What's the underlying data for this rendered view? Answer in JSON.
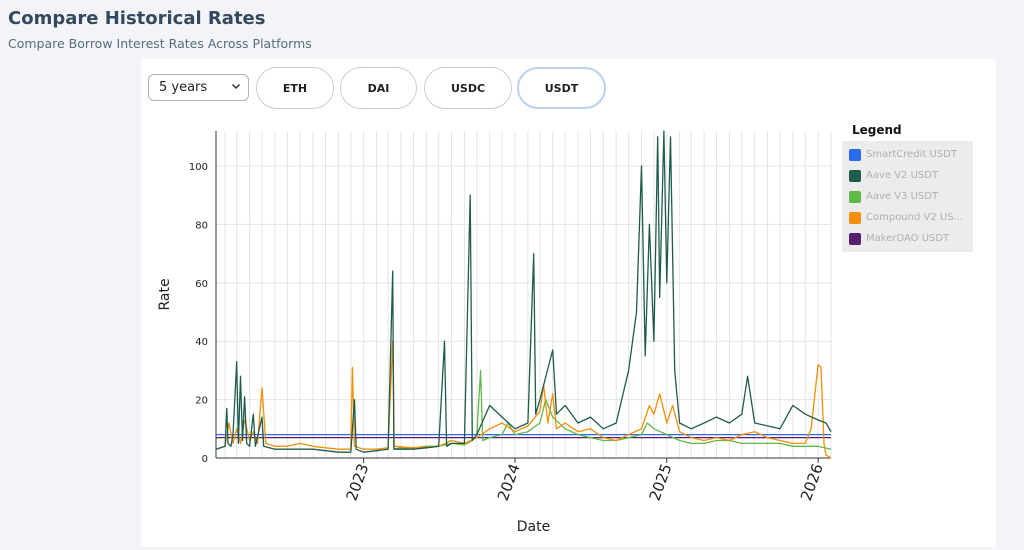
{
  "header": {
    "title": "Compare Historical Rates",
    "subtitle": "Compare Borrow Interest Rates Across Platforms"
  },
  "controls": {
    "period": {
      "selected": "5 years"
    },
    "assets": [
      {
        "label": "ETH",
        "active": false
      },
      {
        "label": "DAI",
        "active": false
      },
      {
        "label": "USDC",
        "active": false
      },
      {
        "label": "USDT",
        "active": true
      }
    ]
  },
  "legend": {
    "title": "Legend",
    "items": [
      {
        "label": "SmartCredit USDT",
        "color": "#2a6bf0"
      },
      {
        "label": "Aave V2 USDT",
        "color": "#1f5b4c"
      },
      {
        "label": "Aave V3 USDT",
        "color": "#5fb946"
      },
      {
        "label": "Compound V2 US...",
        "color": "#f28f0b"
      },
      {
        "label": "MakerDAO USDT",
        "color": "#5a1e6e"
      }
    ]
  },
  "chart_data": {
    "type": "line",
    "xlabel": "Date",
    "ylabel": "Rate",
    "xlim": [
      "2022-01-10",
      "2026-02-01"
    ],
    "ylim": [
      0,
      112
    ],
    "x_ticks": [
      "2023",
      "2024",
      "2025",
      "2026"
    ],
    "y_ticks": [
      0,
      20,
      40,
      60,
      80,
      100
    ],
    "grid": true,
    "legend_position": "right",
    "series": [
      {
        "name": "SmartCredit USDT",
        "color": "#2a6bf0",
        "points": [
          [
            "2022-01-10",
            8
          ],
          [
            "2026-02-01",
            8
          ]
        ]
      },
      {
        "name": "MakerDAO USDT",
        "color": "#5a1e6e",
        "points": [
          [
            "2022-01-10",
            7
          ],
          [
            "2026-02-01",
            7
          ]
        ]
      },
      {
        "name": "Aave V3 USDT",
        "color": "#5fb946",
        "points": [
          [
            "2023-03-15",
            3
          ],
          [
            "2023-04-01",
            3.5
          ],
          [
            "2023-05-01",
            3.5
          ],
          [
            "2023-06-01",
            4
          ],
          [
            "2023-07-01",
            4
          ],
          [
            "2023-08-01",
            5
          ],
          [
            "2023-09-01",
            4.5
          ],
          [
            "2023-09-20",
            6
          ],
          [
            "2023-10-01",
            8
          ],
          [
            "2023-10-10",
            30
          ],
          [
            "2023-10-15",
            6
          ],
          [
            "2023-11-01",
            7
          ],
          [
            "2023-12-01",
            8
          ],
          [
            "2023-12-15",
            12
          ],
          [
            "2024-01-01",
            8
          ],
          [
            "2024-02-01",
            9
          ],
          [
            "2024-03-01",
            12
          ],
          [
            "2024-03-15",
            20
          ],
          [
            "2024-04-01",
            14
          ],
          [
            "2024-05-01",
            10
          ],
          [
            "2024-06-01",
            8
          ],
          [
            "2024-07-01",
            7
          ],
          [
            "2024-08-01",
            6
          ],
          [
            "2024-09-01",
            6
          ],
          [
            "2024-10-01",
            7
          ],
          [
            "2024-11-01",
            8
          ],
          [
            "2024-11-15",
            12
          ],
          [
            "2024-12-01",
            10
          ],
          [
            "2025-01-01",
            8
          ],
          [
            "2025-02-01",
            6
          ],
          [
            "2025-03-01",
            5
          ],
          [
            "2025-04-01",
            5
          ],
          [
            "2025-05-01",
            6
          ],
          [
            "2025-06-01",
            6
          ],
          [
            "2025-07-01",
            5
          ],
          [
            "2025-08-01",
            5
          ],
          [
            "2025-09-01",
            5
          ],
          [
            "2025-10-01",
            5
          ],
          [
            "2025-11-01",
            4
          ],
          [
            "2025-12-01",
            4
          ],
          [
            "2026-01-01",
            4
          ],
          [
            "2026-02-01",
            3
          ]
        ]
      },
      {
        "name": "Compound V2 USDT",
        "color": "#f28f0b",
        "points": [
          [
            "2022-01-10",
            3
          ],
          [
            "2022-02-01",
            4
          ],
          [
            "2022-02-10",
            12
          ],
          [
            "2022-02-20",
            5
          ],
          [
            "2022-03-01",
            10
          ],
          [
            "2022-03-10",
            5
          ],
          [
            "2022-03-20",
            13
          ],
          [
            "2022-04-01",
            6
          ],
          [
            "2022-04-10",
            9
          ],
          [
            "2022-04-20",
            5
          ],
          [
            "2022-05-01",
            24
          ],
          [
            "2022-05-10",
            5
          ],
          [
            "2022-06-01",
            4
          ],
          [
            "2022-07-01",
            4
          ],
          [
            "2022-08-01",
            5
          ],
          [
            "2022-09-01",
            4
          ],
          [
            "2022-10-01",
            3.5
          ],
          [
            "2022-11-01",
            3
          ],
          [
            "2022-12-01",
            3
          ],
          [
            "2022-12-05",
            31
          ],
          [
            "2022-12-10",
            4
          ],
          [
            "2023-01-01",
            3
          ],
          [
            "2023-02-01",
            3
          ],
          [
            "2023-03-01",
            3.5
          ],
          [
            "2023-03-12",
            40
          ],
          [
            "2023-03-16",
            4
          ],
          [
            "2023-05-01",
            3.5
          ],
          [
            "2023-07-01",
            4
          ],
          [
            "2023-08-01",
            6
          ],
          [
            "2023-09-01",
            5
          ],
          [
            "2023-10-01",
            7
          ],
          [
            "2023-11-01",
            10
          ],
          [
            "2023-12-01",
            12
          ],
          [
            "2024-01-01",
            9
          ],
          [
            "2024-02-01",
            11
          ],
          [
            "2024-03-01",
            16
          ],
          [
            "2024-03-10",
            25
          ],
          [
            "2024-03-20",
            12
          ],
          [
            "2024-04-01",
            22
          ],
          [
            "2024-04-10",
            10
          ],
          [
            "2024-05-01",
            12
          ],
          [
            "2024-06-01",
            9
          ],
          [
            "2024-07-01",
            10
          ],
          [
            "2024-08-01",
            7
          ],
          [
            "2024-09-01",
            6
          ],
          [
            "2024-10-01",
            8
          ],
          [
            "2024-11-01",
            10
          ],
          [
            "2024-11-20",
            18
          ],
          [
            "2024-12-01",
            15
          ],
          [
            "2024-12-15",
            22
          ],
          [
            "2025-01-01",
            12
          ],
          [
            "2025-01-15",
            18
          ],
          [
            "2025-02-01",
            9
          ],
          [
            "2025-03-01",
            7
          ],
          [
            "2025-04-01",
            6
          ],
          [
            "2025-05-01",
            7
          ],
          [
            "2025-06-01",
            6
          ],
          [
            "2025-07-01",
            8
          ],
          [
            "2025-08-01",
            9
          ],
          [
            "2025-09-01",
            7
          ],
          [
            "2025-10-01",
            6
          ],
          [
            "2025-11-01",
            5
          ],
          [
            "2025-12-01",
            5
          ],
          [
            "2025-12-15",
            10
          ],
          [
            "2026-01-01",
            32
          ],
          [
            "2026-01-08",
            31
          ],
          [
            "2026-01-15",
            5
          ],
          [
            "2026-01-20",
            1
          ],
          [
            "2026-02-01",
            0
          ]
        ]
      },
      {
        "name": "Aave V2 USDT",
        "color": "#1f5b4c",
        "points": [
          [
            "2022-01-10",
            3
          ],
          [
            "2022-02-01",
            4
          ],
          [
            "2022-02-05",
            17
          ],
          [
            "2022-02-08",
            5
          ],
          [
            "2022-02-15",
            4
          ],
          [
            "2022-02-20",
            8
          ],
          [
            "2022-03-01",
            33
          ],
          [
            "2022-03-05",
            5
          ],
          [
            "2022-03-10",
            28
          ],
          [
            "2022-03-15",
            6
          ],
          [
            "2022-03-20",
            21
          ],
          [
            "2022-03-25",
            5
          ],
          [
            "2022-04-01",
            4
          ],
          [
            "2022-04-10",
            15
          ],
          [
            "2022-04-15",
            4
          ],
          [
            "2022-05-01",
            14
          ],
          [
            "2022-05-05",
            4
          ],
          [
            "2022-06-01",
            3
          ],
          [
            "2022-07-01",
            3
          ],
          [
            "2022-08-01",
            3
          ],
          [
            "2022-09-01",
            3
          ],
          [
            "2022-10-01",
            2.5
          ],
          [
            "2022-11-01",
            2
          ],
          [
            "2022-12-01",
            2
          ],
          [
            "2022-12-10",
            20
          ],
          [
            "2022-12-14",
            3
          ],
          [
            "2023-01-01",
            2
          ],
          [
            "2023-02-01",
            2.5
          ],
          [
            "2023-03-01",
            3
          ],
          [
            "2023-03-12",
            64
          ],
          [
            "2023-03-15",
            3
          ],
          [
            "2023-04-01",
            3
          ],
          [
            "2023-05-01",
            3
          ],
          [
            "2023-06-01",
            3.5
          ],
          [
            "2023-07-01",
            4
          ],
          [
            "2023-07-15",
            40
          ],
          [
            "2023-07-20",
            4
          ],
          [
            "2023-08-01",
            5
          ],
          [
            "2023-09-01",
            5
          ],
          [
            "2023-09-15",
            90
          ],
          [
            "2023-09-20",
            6
          ],
          [
            "2023-10-01",
            8
          ],
          [
            "2023-11-01",
            18
          ],
          [
            "2023-12-01",
            14
          ],
          [
            "2024-01-01",
            10
          ],
          [
            "2024-02-01",
            12
          ],
          [
            "2024-02-15",
            70
          ],
          [
            "2024-02-20",
            15
          ],
          [
            "2024-03-01",
            20
          ],
          [
            "2024-04-01",
            37
          ],
          [
            "2024-04-10",
            15
          ],
          [
            "2024-05-01",
            18
          ],
          [
            "2024-06-01",
            12
          ],
          [
            "2024-07-01",
            14
          ],
          [
            "2024-08-01",
            10
          ],
          [
            "2024-09-01",
            12
          ],
          [
            "2024-10-01",
            30
          ],
          [
            "2024-10-20",
            50
          ],
          [
            "2024-11-01",
            100
          ],
          [
            "2024-11-10",
            35
          ],
          [
            "2024-11-20",
            80
          ],
          [
            "2024-12-01",
            40
          ],
          [
            "2024-12-10",
            110
          ],
          [
            "2024-12-15",
            55
          ],
          [
            "2024-12-25",
            112
          ],
          [
            "2025-01-01",
            60
          ],
          [
            "2025-01-10",
            110
          ],
          [
            "2025-01-20",
            30
          ],
          [
            "2025-02-01",
            12
          ],
          [
            "2025-03-01",
            10
          ],
          [
            "2025-04-01",
            12
          ],
          [
            "2025-05-01",
            14
          ],
          [
            "2025-06-01",
            12
          ],
          [
            "2025-07-01",
            15
          ],
          [
            "2025-07-15",
            28
          ],
          [
            "2025-08-01",
            12
          ],
          [
            "2025-09-01",
            11
          ],
          [
            "2025-10-01",
            10
          ],
          [
            "2025-11-01",
            18
          ],
          [
            "2025-12-01",
            15
          ],
          [
            "2026-01-01",
            13
          ],
          [
            "2026-01-20",
            12
          ],
          [
            "2026-02-01",
            9
          ]
        ]
      }
    ]
  }
}
